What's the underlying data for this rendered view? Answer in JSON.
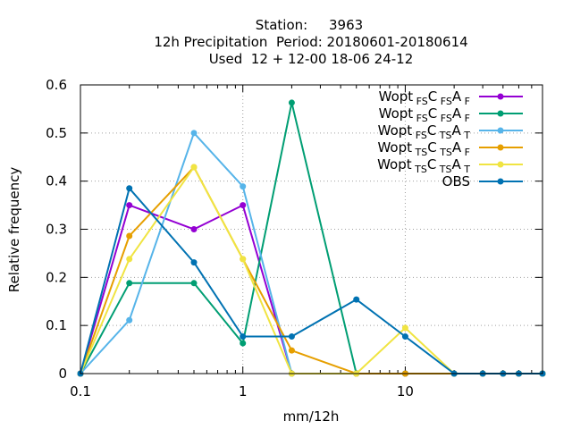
{
  "chart_data": {
    "type": "line",
    "title": [
      "Station:     3963",
      "12h Precipitation  Period: 20180601-20180614",
      "Used  12 + 12-00 18-06 24-12"
    ],
    "xlabel": "mm/12h",
    "ylabel": "Relative frequency",
    "xscale": "log",
    "xlim": [
      0.1,
      70
    ],
    "ylim": [
      0,
      0.6
    ],
    "x_ticks": [
      "0.1",
      "1",
      "10"
    ],
    "y_ticks": [
      "0",
      "0.1",
      "0.2",
      "0.3",
      "0.4",
      "0.5",
      "0.6"
    ],
    "grid": true,
    "legend_position": "top-right",
    "x": [
      0.1,
      0.2,
      0.5,
      1,
      2,
      5,
      10,
      20,
      30,
      40,
      50,
      70
    ],
    "series": [
      {
        "legend": [
          [
            "Wopt",
            ""
          ],
          [
            "FS",
            "sub"
          ],
          [
            "C",
            ""
          ],
          [
            "FS",
            "sub"
          ],
          [
            "A",
            ""
          ],
          [
            "F",
            "sub"
          ]
        ],
        "color": "#9400d3",
        "values": [
          0,
          0.35,
          0.3,
          0.35,
          0,
          0,
          0,
          0,
          0,
          0,
          0,
          0
        ]
      },
      {
        "legend": [
          [
            "Wopt",
            ""
          ],
          [
            "FS",
            "sub"
          ],
          [
            "C",
            ""
          ],
          [
            "FS",
            "sub"
          ],
          [
            "A",
            ""
          ],
          [
            "F",
            "sub"
          ]
        ],
        "color": "#009e73",
        "values": [
          0,
          0.188,
          0.188,
          0.063,
          0.563,
          0,
          0,
          0,
          0,
          0,
          0,
          0
        ]
      },
      {
        "legend": [
          [
            "Wopt",
            ""
          ],
          [
            "FS",
            "sub"
          ],
          [
            "C",
            ""
          ],
          [
            "TS",
            "sub"
          ],
          [
            "A",
            ""
          ],
          [
            "T",
            "sub"
          ]
        ],
        "color": "#56b4e9",
        "values": [
          0,
          0.111,
          0.5,
          0.389,
          0,
          0,
          0,
          0,
          0,
          0,
          0,
          0
        ]
      },
      {
        "legend": [
          [
            "Wopt",
            ""
          ],
          [
            "TS",
            "sub"
          ],
          [
            "C",
            ""
          ],
          [
            "TS",
            "sub"
          ],
          [
            "A",
            ""
          ],
          [
            "F",
            "sub"
          ]
        ],
        "color": "#e69f00",
        "values": [
          0,
          0.286,
          0.429,
          0.238,
          0.048,
          0,
          0,
          0,
          0,
          0,
          0,
          0
        ]
      },
      {
        "legend": [
          [
            "Wopt",
            ""
          ],
          [
            "TS",
            "sub"
          ],
          [
            "C",
            ""
          ],
          [
            "TS",
            "sub"
          ],
          [
            "A",
            ""
          ],
          [
            "T",
            "sub"
          ]
        ],
        "color": "#f0e442",
        "values": [
          0,
          0.238,
          0.429,
          0.238,
          0,
          0,
          0.095,
          0,
          0,
          0,
          0,
          0
        ]
      },
      {
        "legend": [
          [
            "OBS",
            ""
          ]
        ],
        "color": "#0072b2",
        "values": [
          0,
          0.385,
          0.231,
          0.077,
          0.077,
          0.154,
          0.077,
          0,
          0,
          0,
          0,
          0
        ]
      }
    ]
  }
}
